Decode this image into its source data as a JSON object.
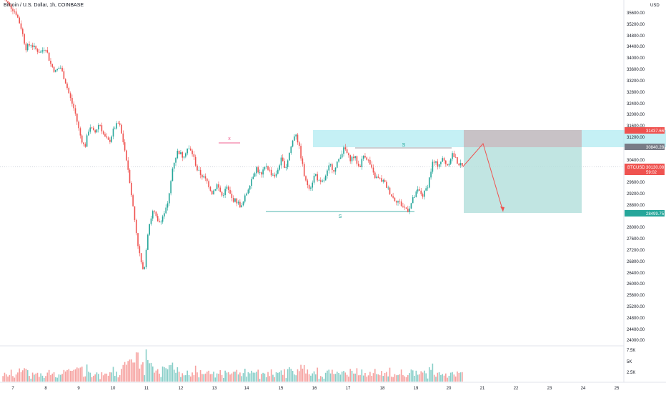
{
  "window": {
    "title": "Bitcoin / U.S. Dollar, 1h, COINBASE"
  },
  "header": {
    "symbol_title": "Bitcoin / U.S. Dollar, 1h, COINBASE",
    "currency": "USD"
  },
  "colors": {
    "up": "#26a69a",
    "down": "#ef5350",
    "zone_blue": "#b2ebf2",
    "zone_gray": "#c8c2c6",
    "zone_green": "#b2dfdb",
    "price_tag": "#ef5350",
    "target_tag": "#26a69a",
    "stop_tag": "#ef5350",
    "entry_tag": "#787b86"
  },
  "chart_data": {
    "type": "candlestick",
    "symbol": "BTCUSD",
    "timeframe": "1h",
    "exchange": "COINBASE",
    "y_ticks": [
      "35600.00",
      "35200.00",
      "34800.00",
      "34400.00",
      "34000.00",
      "33600.00",
      "33200.00",
      "32800.00",
      "32400.00",
      "32000.00",
      "31600.00",
      "31200.00",
      "30400.00",
      "29600.00",
      "29200.00",
      "28800.00",
      "28000.00",
      "27600.00",
      "27200.00",
      "26800.00",
      "26400.00",
      "26000.00",
      "25600.00",
      "25200.00",
      "24800.00",
      "24400.00",
      "24000.00"
    ],
    "x_ticks": [
      "7",
      "8",
      "9",
      "10",
      "11",
      "12",
      "13",
      "14",
      "15",
      "16",
      "17",
      "18",
      "19",
      "20",
      "21",
      "22",
      "23",
      "24",
      "25"
    ],
    "volume_ticks": [
      "7.5K",
      "5K",
      "2.5K"
    ],
    "price_path": [
      [
        0,
        36200
      ],
      [
        3,
        35600
      ],
      [
        4,
        35100
      ],
      [
        5,
        34350
      ],
      [
        6,
        34500
      ],
      [
        7,
        34300
      ],
      [
        8,
        34200
      ],
      [
        9,
        34400
      ],
      [
        10,
        33800
      ],
      [
        11,
        33500
      ],
      [
        12,
        33700
      ],
      [
        13,
        33200
      ],
      [
        14,
        32600
      ],
      [
        15,
        32100
      ],
      [
        16,
        31300
      ],
      [
        17,
        30800
      ],
      [
        18,
        31600
      ],
      [
        19,
        31300
      ],
      [
        20,
        31700
      ],
      [
        21,
        31200
      ],
      [
        22,
        31000
      ],
      [
        23,
        31500
      ],
      [
        24,
        31700
      ],
      [
        25,
        30900
      ],
      [
        26,
        29900
      ],
      [
        27,
        28500
      ],
      [
        28,
        27200
      ],
      [
        29,
        26300
      ],
      [
        30,
        28000
      ],
      [
        31,
        28600
      ],
      [
        32,
        28100
      ],
      [
        33,
        28400
      ],
      [
        34,
        28800
      ],
      [
        35,
        30200
      ],
      [
        36,
        30700
      ],
      [
        37,
        30500
      ],
      [
        38,
        30800
      ],
      [
        39,
        30600
      ],
      [
        40,
        30000
      ],
      [
        41,
        29800
      ],
      [
        42,
        29600
      ],
      [
        43,
        29200
      ],
      [
        44,
        29500
      ],
      [
        45,
        29100
      ],
      [
        46,
        29400
      ],
      [
        47,
        29000
      ],
      [
        48,
        28900
      ],
      [
        49,
        28700
      ],
      [
        50,
        29200
      ],
      [
        51,
        29700
      ],
      [
        52,
        30100
      ],
      [
        53,
        29800
      ],
      [
        54,
        30200
      ],
      [
        55,
        29900
      ],
      [
        56,
        29800
      ],
      [
        57,
        30400
      ],
      [
        58,
        30100
      ],
      [
        59,
        30800
      ],
      [
        60,
        31400
      ],
      [
        61,
        30600
      ],
      [
        62,
        29600
      ],
      [
        63,
        29400
      ],
      [
        64,
        29900
      ],
      [
        65,
        29500
      ],
      [
        66,
        29700
      ],
      [
        67,
        30200
      ],
      [
        68,
        30000
      ],
      [
        69,
        30500
      ],
      [
        70,
        30800
      ],
      [
        71,
        30400
      ],
      [
        72,
        30500
      ],
      [
        73,
        30100
      ],
      [
        74,
        30600
      ],
      [
        75,
        30300
      ],
      [
        76,
        29800
      ],
      [
        77,
        29700
      ],
      [
        78,
        29600
      ],
      [
        79,
        29300
      ],
      [
        80,
        29000
      ],
      [
        81,
        28900
      ],
      [
        82,
        28700
      ],
      [
        83,
        28600
      ],
      [
        84,
        29000
      ],
      [
        85,
        29300
      ],
      [
        86,
        29100
      ],
      [
        87,
        29500
      ],
      [
        88,
        30300
      ],
      [
        89,
        30200
      ],
      [
        90,
        30400
      ],
      [
        91,
        30200
      ],
      [
        92,
        30600
      ],
      [
        93,
        30300
      ],
      [
        94,
        30130
      ]
    ],
    "series": [
      {
        "name": "BTCUSD",
        "last": "30130.08"
      }
    ],
    "annotations": {
      "x_marker": "x",
      "top_s_label": "S",
      "bottom_s_label": "S",
      "target_level": "28499.75",
      "stop_level": "31437.66",
      "entry_level": "30840.28",
      "current_price": "30130.08",
      "countdown": "59:02",
      "symbol_tag": "BTCUSD"
    }
  }
}
